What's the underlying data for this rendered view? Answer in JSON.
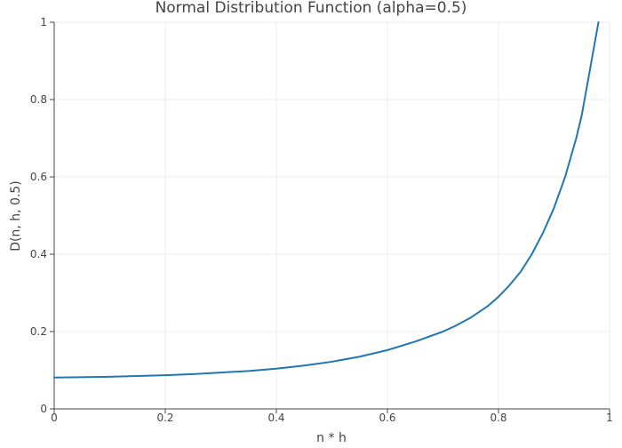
{
  "chart_data": {
    "type": "line",
    "title": "Normal Distribution Function (alpha=0.5)",
    "xlabel": "n * h",
    "ylabel": "D(n, h, 0.5)",
    "xlim": [
      0,
      1
    ],
    "ylim": [
      0,
      1
    ],
    "x_ticks": [
      0,
      0.2,
      0.4,
      0.6,
      0.8,
      1
    ],
    "x_tick_labels": [
      "0",
      "0.2",
      "0.4",
      "0.6",
      "0.8",
      "1"
    ],
    "y_ticks": [
      0,
      0.2,
      0.4,
      0.6,
      0.8,
      1
    ],
    "y_tick_labels": [
      "0",
      "0.2",
      "0.4",
      "0.6",
      "0.8",
      "1"
    ],
    "grid": true,
    "legend": "none",
    "series": [
      {
        "color": "#1f77b4",
        "x": [
          0,
          0.1,
          0.2,
          0.25,
          0.3,
          0.35,
          0.4,
          0.45,
          0.5,
          0.55,
          0.6,
          0.65,
          0.7,
          0.72,
          0.75,
          0.78,
          0.8,
          0.82,
          0.84,
          0.86,
          0.88,
          0.9,
          0.92,
          0.94,
          0.95,
          0.96,
          0.97,
          0.98
        ],
        "y": [
          0.081,
          0.083,
          0.087,
          0.09,
          0.094,
          0.098,
          0.104,
          0.112,
          0.122,
          0.135,
          0.152,
          0.174,
          0.2,
          0.213,
          0.236,
          0.265,
          0.29,
          0.32,
          0.355,
          0.4,
          0.455,
          0.52,
          0.6,
          0.7,
          0.76,
          0.84,
          0.92,
          1.0
        ]
      }
    ]
  }
}
